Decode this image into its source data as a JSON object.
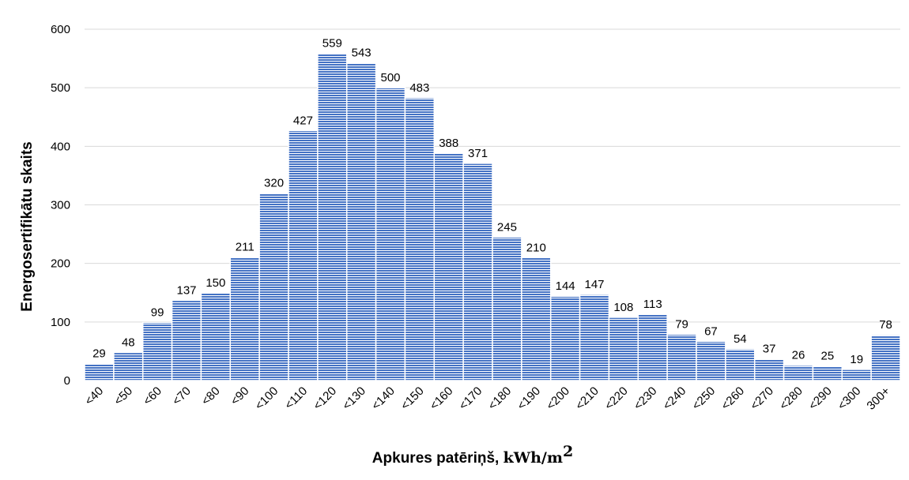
{
  "chart_data": {
    "type": "bar",
    "categories": [
      "<40",
      "<50",
      "<60",
      "<70",
      "<80",
      "<90",
      "<100",
      "<110",
      "<120",
      "<130",
      "<140",
      "<150",
      "<160",
      "<170",
      "<180",
      "<190",
      "<200",
      "<210",
      "<220",
      "<230",
      "<240",
      "<250",
      "<260",
      "<270",
      "<280",
      "<290",
      "<300",
      "300+"
    ],
    "values": [
      29,
      48,
      99,
      137,
      150,
      211,
      320,
      427,
      559,
      543,
      500,
      483,
      388,
      371,
      245,
      210,
      144,
      147,
      108,
      113,
      79,
      67,
      54,
      37,
      26,
      25,
      19,
      78
    ],
    "xlabel_text": "Apkures patēriņš, ",
    "xlabel_unit": "kWh/m",
    "xlabel_unit_exp": "2",
    "ylabel": "Energosertifikātu skaits",
    "ylim": [
      0,
      600
    ],
    "yticks": [
      0,
      100,
      200,
      300,
      400,
      500,
      600
    ],
    "grid": true,
    "bar_color": "#4472c4"
  }
}
